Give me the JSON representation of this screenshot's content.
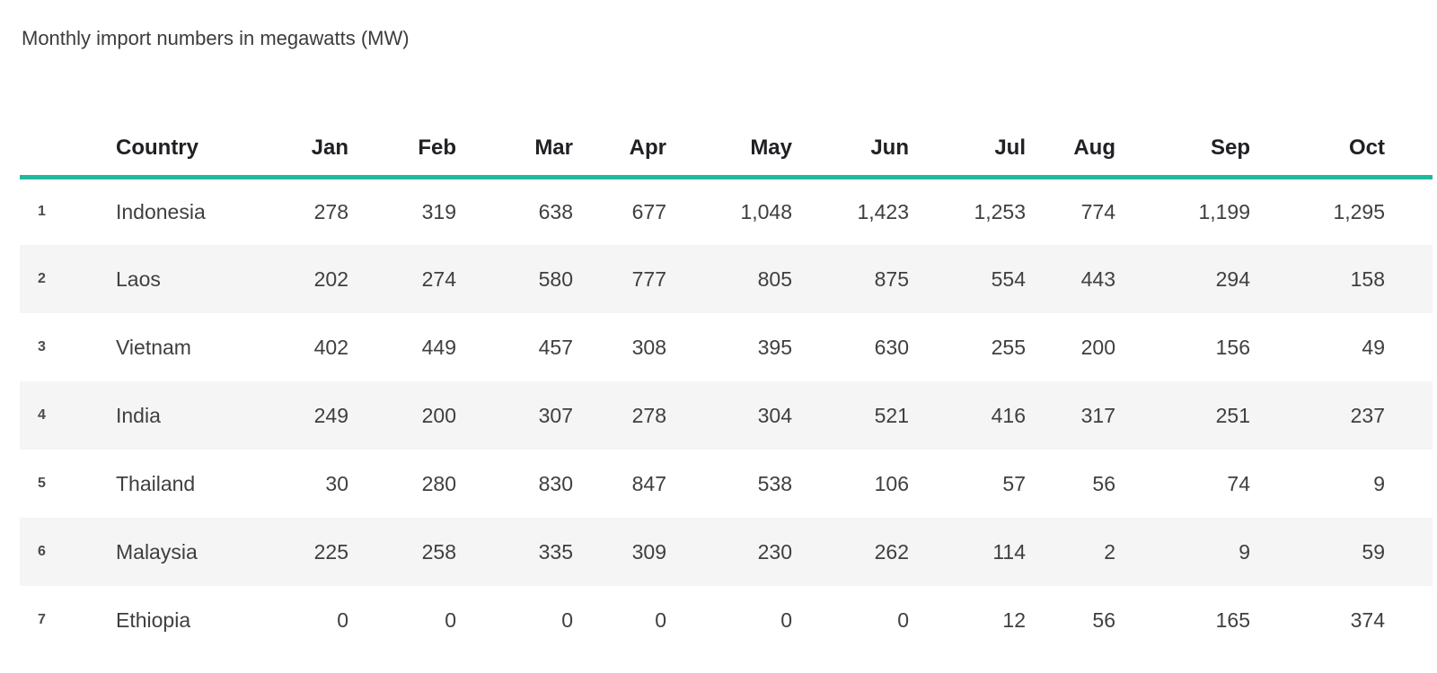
{
  "page": {
    "title": "Monthly import numbers in megawatts (MW)"
  },
  "colors": {
    "accent": "#20b99d",
    "stripe_row_background": "#f5f5f5",
    "header_text": "#202124",
    "body_text": "#3f3f3f",
    "row_number_text": "#4a4a4a",
    "page_background": "#ffffff"
  },
  "chart_data": {
    "type": "table",
    "title": "Monthly import numbers in megawatts (MW)",
    "columns": [
      "Country",
      "Jan",
      "Feb",
      "Mar",
      "Apr",
      "May",
      "Jun",
      "Jul",
      "Aug",
      "Sep",
      "Oct"
    ],
    "rows": [
      {
        "index": "1",
        "country": "Indonesia",
        "values": [
          "278",
          "319",
          "638",
          "677",
          "1,048",
          "1,423",
          "1,253",
          "774",
          "1,199",
          "1,295"
        ]
      },
      {
        "index": "2",
        "country": "Laos",
        "values": [
          "202",
          "274",
          "580",
          "777",
          "805",
          "875",
          "554",
          "443",
          "294",
          "158"
        ]
      },
      {
        "index": "3",
        "country": "Vietnam",
        "values": [
          "402",
          "449",
          "457",
          "308",
          "395",
          "630",
          "255",
          "200",
          "156",
          "49"
        ]
      },
      {
        "index": "4",
        "country": "India",
        "values": [
          "249",
          "200",
          "307",
          "278",
          "304",
          "521",
          "416",
          "317",
          "251",
          "237"
        ]
      },
      {
        "index": "5",
        "country": "Thailand",
        "values": [
          "30",
          "280",
          "830",
          "847",
          "538",
          "106",
          "57",
          "56",
          "74",
          "9"
        ]
      },
      {
        "index": "6",
        "country": "Malaysia",
        "values": [
          "225",
          "258",
          "335",
          "309",
          "230",
          "262",
          "114",
          "2",
          "9",
          "59"
        ]
      },
      {
        "index": "7",
        "country": "Ethiopia",
        "values": [
          "0",
          "0",
          "0",
          "0",
          "0",
          "0",
          "12",
          "56",
          "165",
          "374"
        ]
      }
    ]
  }
}
